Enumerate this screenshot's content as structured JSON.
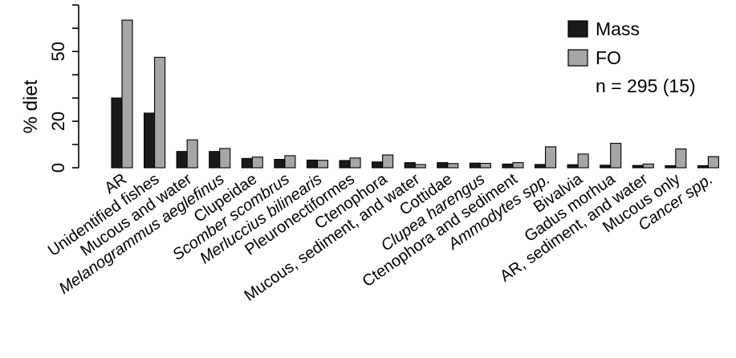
{
  "chart_data": {
    "type": "bar",
    "title": "",
    "xlabel": "",
    "ylabel": "% diet",
    "ylim": [
      0,
      70
    ],
    "yticks": [
      0,
      20,
      50
    ],
    "grid": false,
    "legend_position": "top-right",
    "categories": [
      "AR",
      "Unidentified fishes",
      "Mucous and water",
      "Melanogrammus aeglefinus",
      "Clupeidae",
      "Scomber scombrus",
      "Merluccius bilinearis",
      "Pleuronectiformes",
      "Ctenophora",
      "Mucous, sediment, and water",
      "Cottidae",
      "Clupea harengus",
      "Ctenophora and sediment",
      "Ammodytes spp.",
      "Bivalvia",
      "Gadus morhua",
      "AR, sediment, and water",
      "Mucous only",
      "Cancer spp."
    ],
    "italic": [
      false,
      false,
      false,
      true,
      false,
      true,
      true,
      false,
      false,
      false,
      false,
      true,
      false,
      true,
      false,
      false,
      false,
      false,
      true
    ],
    "series": [
      {
        "name": "Mass",
        "color": "#1a1a1a",
        "values": [
          30,
          23.5,
          7,
          7,
          4,
          3.6,
          3.3,
          3.1,
          2.5,
          2.2,
          2.2,
          2,
          1.6,
          1.4,
          1.3,
          1.1,
          1,
          0.9,
          0.9
        ]
      },
      {
        "name": "FO",
        "color": "#a6a6a6",
        "values": [
          63.5,
          47.5,
          12,
          8.3,
          4.6,
          5.2,
          3.2,
          4.2,
          5.5,
          1.4,
          1.8,
          1.9,
          2.2,
          9,
          5.9,
          10.5,
          1.6,
          8.1,
          4.8
        ]
      }
    ],
    "annotation": "n = 295 (15)"
  }
}
